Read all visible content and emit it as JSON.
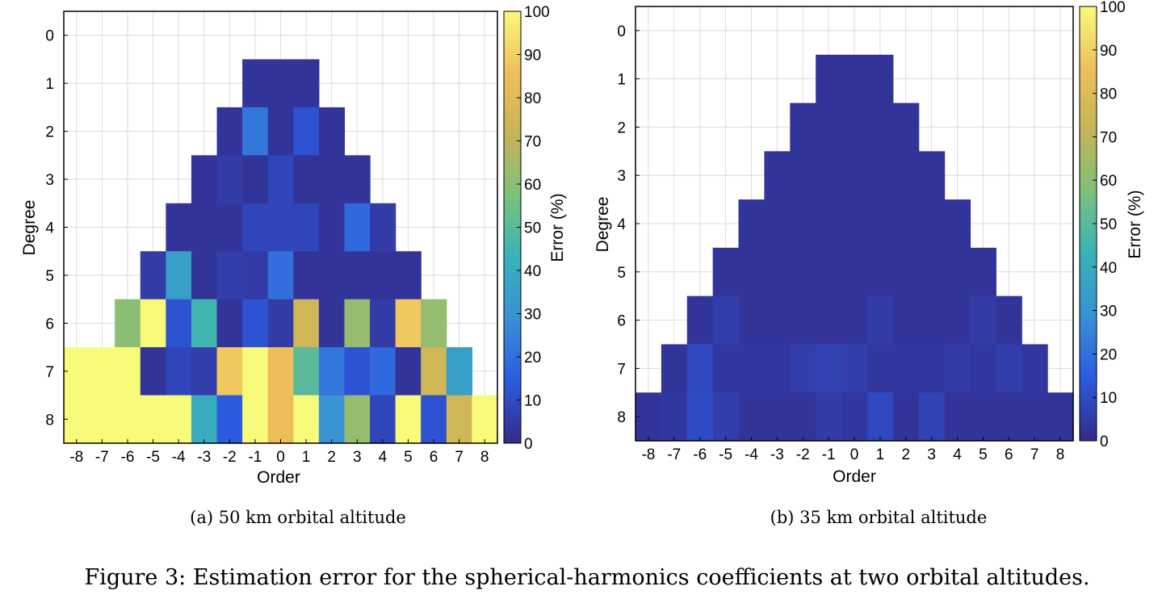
{
  "figure": {
    "caption": "Figure 3: Estimation error for the spherical-harmonics coefficients at two orbital altitudes."
  },
  "colormap": {
    "stops": [
      "#352a87",
      "#2c5ae0",
      "#3a8fd6",
      "#36b3b8",
      "#7cc07c",
      "#c5b457",
      "#eebf5b",
      "#f8fa79"
    ],
    "range": [
      0,
      100
    ]
  },
  "chart_data": [
    {
      "type": "heatmap",
      "subcaption": "(a) 50 km orbital altitude",
      "xlabel": "Order",
      "ylabel": "Degree",
      "colorbar_label": "Error (%)",
      "x_ticks": [
        -8,
        -7,
        -6,
        -5,
        -4,
        -3,
        -2,
        -1,
        0,
        1,
        2,
        3,
        4,
        5,
        6,
        7,
        8
      ],
      "y_ticks": [
        0,
        1,
        2,
        3,
        4,
        5,
        6,
        7,
        8
      ],
      "colorbar_ticks": [
        0,
        10,
        20,
        30,
        40,
        50,
        60,
        70,
        80,
        90,
        100
      ],
      "xlim": [
        -8.5,
        8.5
      ],
      "ylim": [
        -0.5,
        8.5
      ],
      "clim": [
        0,
        100
      ],
      "grid": true,
      "rows": [
        {
          "degree": 1,
          "orders": [
            -1,
            0,
            1
          ],
          "values": [
            3,
            3,
            3
          ]
        },
        {
          "degree": 2,
          "orders": [
            -2,
            -1,
            0,
            1,
            2
          ],
          "values": [
            3,
            22,
            3,
            12,
            3
          ]
        },
        {
          "degree": 3,
          "orders": [
            -3,
            -2,
            -1,
            0,
            1,
            2,
            3
          ],
          "values": [
            3,
            5,
            3,
            8,
            3,
            3,
            3
          ]
        },
        {
          "degree": 4,
          "orders": [
            -4,
            -3,
            -2,
            -1,
            0,
            1,
            2,
            3,
            4
          ],
          "values": [
            3,
            3,
            3,
            8,
            8,
            8,
            3,
            18,
            5
          ]
        },
        {
          "degree": 5,
          "orders": [
            -5,
            -4,
            -3,
            -2,
            -1,
            0,
            1,
            2,
            3,
            4,
            5
          ],
          "values": [
            5,
            35,
            3,
            6,
            5,
            20,
            3,
            3,
            3,
            3,
            3
          ]
        },
        {
          "degree": 6,
          "orders": [
            -6,
            -5,
            -4,
            -3,
            -2,
            -1,
            0,
            1,
            2,
            3,
            4,
            5,
            6
          ],
          "values": [
            60,
            100,
            12,
            45,
            3,
            12,
            5,
            75,
            3,
            62,
            5,
            88,
            62
          ]
        },
        {
          "degree": 7,
          "orders": [
            -8,
            -7,
            -6,
            -5,
            -4,
            -3,
            -2,
            -1,
            0,
            1,
            2,
            3,
            4,
            5,
            6,
            7
          ],
          "values": [
            100,
            100,
            100,
            3,
            8,
            6,
            88,
            100,
            85,
            50,
            22,
            12,
            18,
            3,
            75,
            35
          ]
        },
        {
          "degree": 8,
          "orders": [
            -8,
            -7,
            -6,
            -5,
            -4,
            -3,
            -2,
            -1,
            0,
            1,
            2,
            3,
            4,
            5,
            6,
            7,
            8
          ],
          "values": [
            100,
            100,
            100,
            100,
            100,
            40,
            14,
            100,
            85,
            100,
            30,
            62,
            8,
            100,
            12,
            75,
            100
          ]
        }
      ]
    },
    {
      "type": "heatmap",
      "subcaption": "(b) 35 km orbital altitude",
      "xlabel": "Order",
      "ylabel": "Degree",
      "colorbar_label": "Error (%)",
      "x_ticks": [
        -8,
        -7,
        -6,
        -5,
        -4,
        -3,
        -2,
        -1,
        0,
        1,
        2,
        3,
        4,
        5,
        6,
        7,
        8
      ],
      "y_ticks": [
        0,
        1,
        2,
        3,
        4,
        5,
        6,
        7,
        8
      ],
      "colorbar_ticks": [
        0,
        10,
        20,
        30,
        40,
        50,
        60,
        70,
        80,
        90,
        100
      ],
      "xlim": [
        -8.5,
        8.5
      ],
      "ylim": [
        -0.5,
        8.5
      ],
      "clim": [
        0,
        100
      ],
      "grid": true,
      "rows": [
        {
          "degree": 1,
          "orders": [
            -1,
            0,
            1
          ],
          "values": [
            3,
            3,
            3
          ]
        },
        {
          "degree": 2,
          "orders": [
            -2,
            -1,
            0,
            1,
            2
          ],
          "values": [
            3,
            3,
            3,
            3,
            3
          ]
        },
        {
          "degree": 3,
          "orders": [
            -3,
            -2,
            -1,
            0,
            1,
            2,
            3
          ],
          "values": [
            3,
            3,
            3,
            3,
            3,
            3,
            3
          ]
        },
        {
          "degree": 4,
          "orders": [
            -4,
            -3,
            -2,
            -1,
            0,
            1,
            2,
            3,
            4
          ],
          "values": [
            3,
            3,
            3,
            3,
            3,
            3,
            3,
            3,
            3
          ]
        },
        {
          "degree": 5,
          "orders": [
            -5,
            -4,
            -3,
            -2,
            -1,
            0,
            1,
            2,
            3,
            4,
            5
          ],
          "values": [
            3,
            3,
            3,
            3,
            3,
            3,
            3,
            3,
            3,
            3,
            3
          ]
        },
        {
          "degree": 6,
          "orders": [
            -6,
            -5,
            -4,
            -3,
            -2,
            -1,
            0,
            1,
            2,
            3,
            4,
            5,
            6
          ],
          "values": [
            3,
            6,
            3,
            3,
            3,
            3,
            3,
            5,
            3,
            3,
            3,
            5,
            3
          ]
        },
        {
          "degree": 7,
          "orders": [
            -7,
            -6,
            -5,
            -4,
            -3,
            -2,
            -1,
            0,
            1,
            2,
            3,
            4,
            5,
            6,
            7
          ],
          "values": [
            3,
            9,
            4,
            4,
            4,
            6,
            7,
            6,
            4,
            4,
            4,
            5,
            4,
            6,
            4
          ]
        },
        {
          "degree": 8,
          "orders": [
            -8,
            -7,
            -6,
            -5,
            -4,
            -3,
            -2,
            -1,
            0,
            1,
            2,
            3,
            4,
            5,
            6,
            7,
            8
          ],
          "values": [
            3,
            4,
            10,
            6,
            3,
            3,
            3,
            5,
            4,
            9,
            3,
            7,
            3,
            3,
            3,
            3,
            3
          ]
        }
      ]
    }
  ]
}
